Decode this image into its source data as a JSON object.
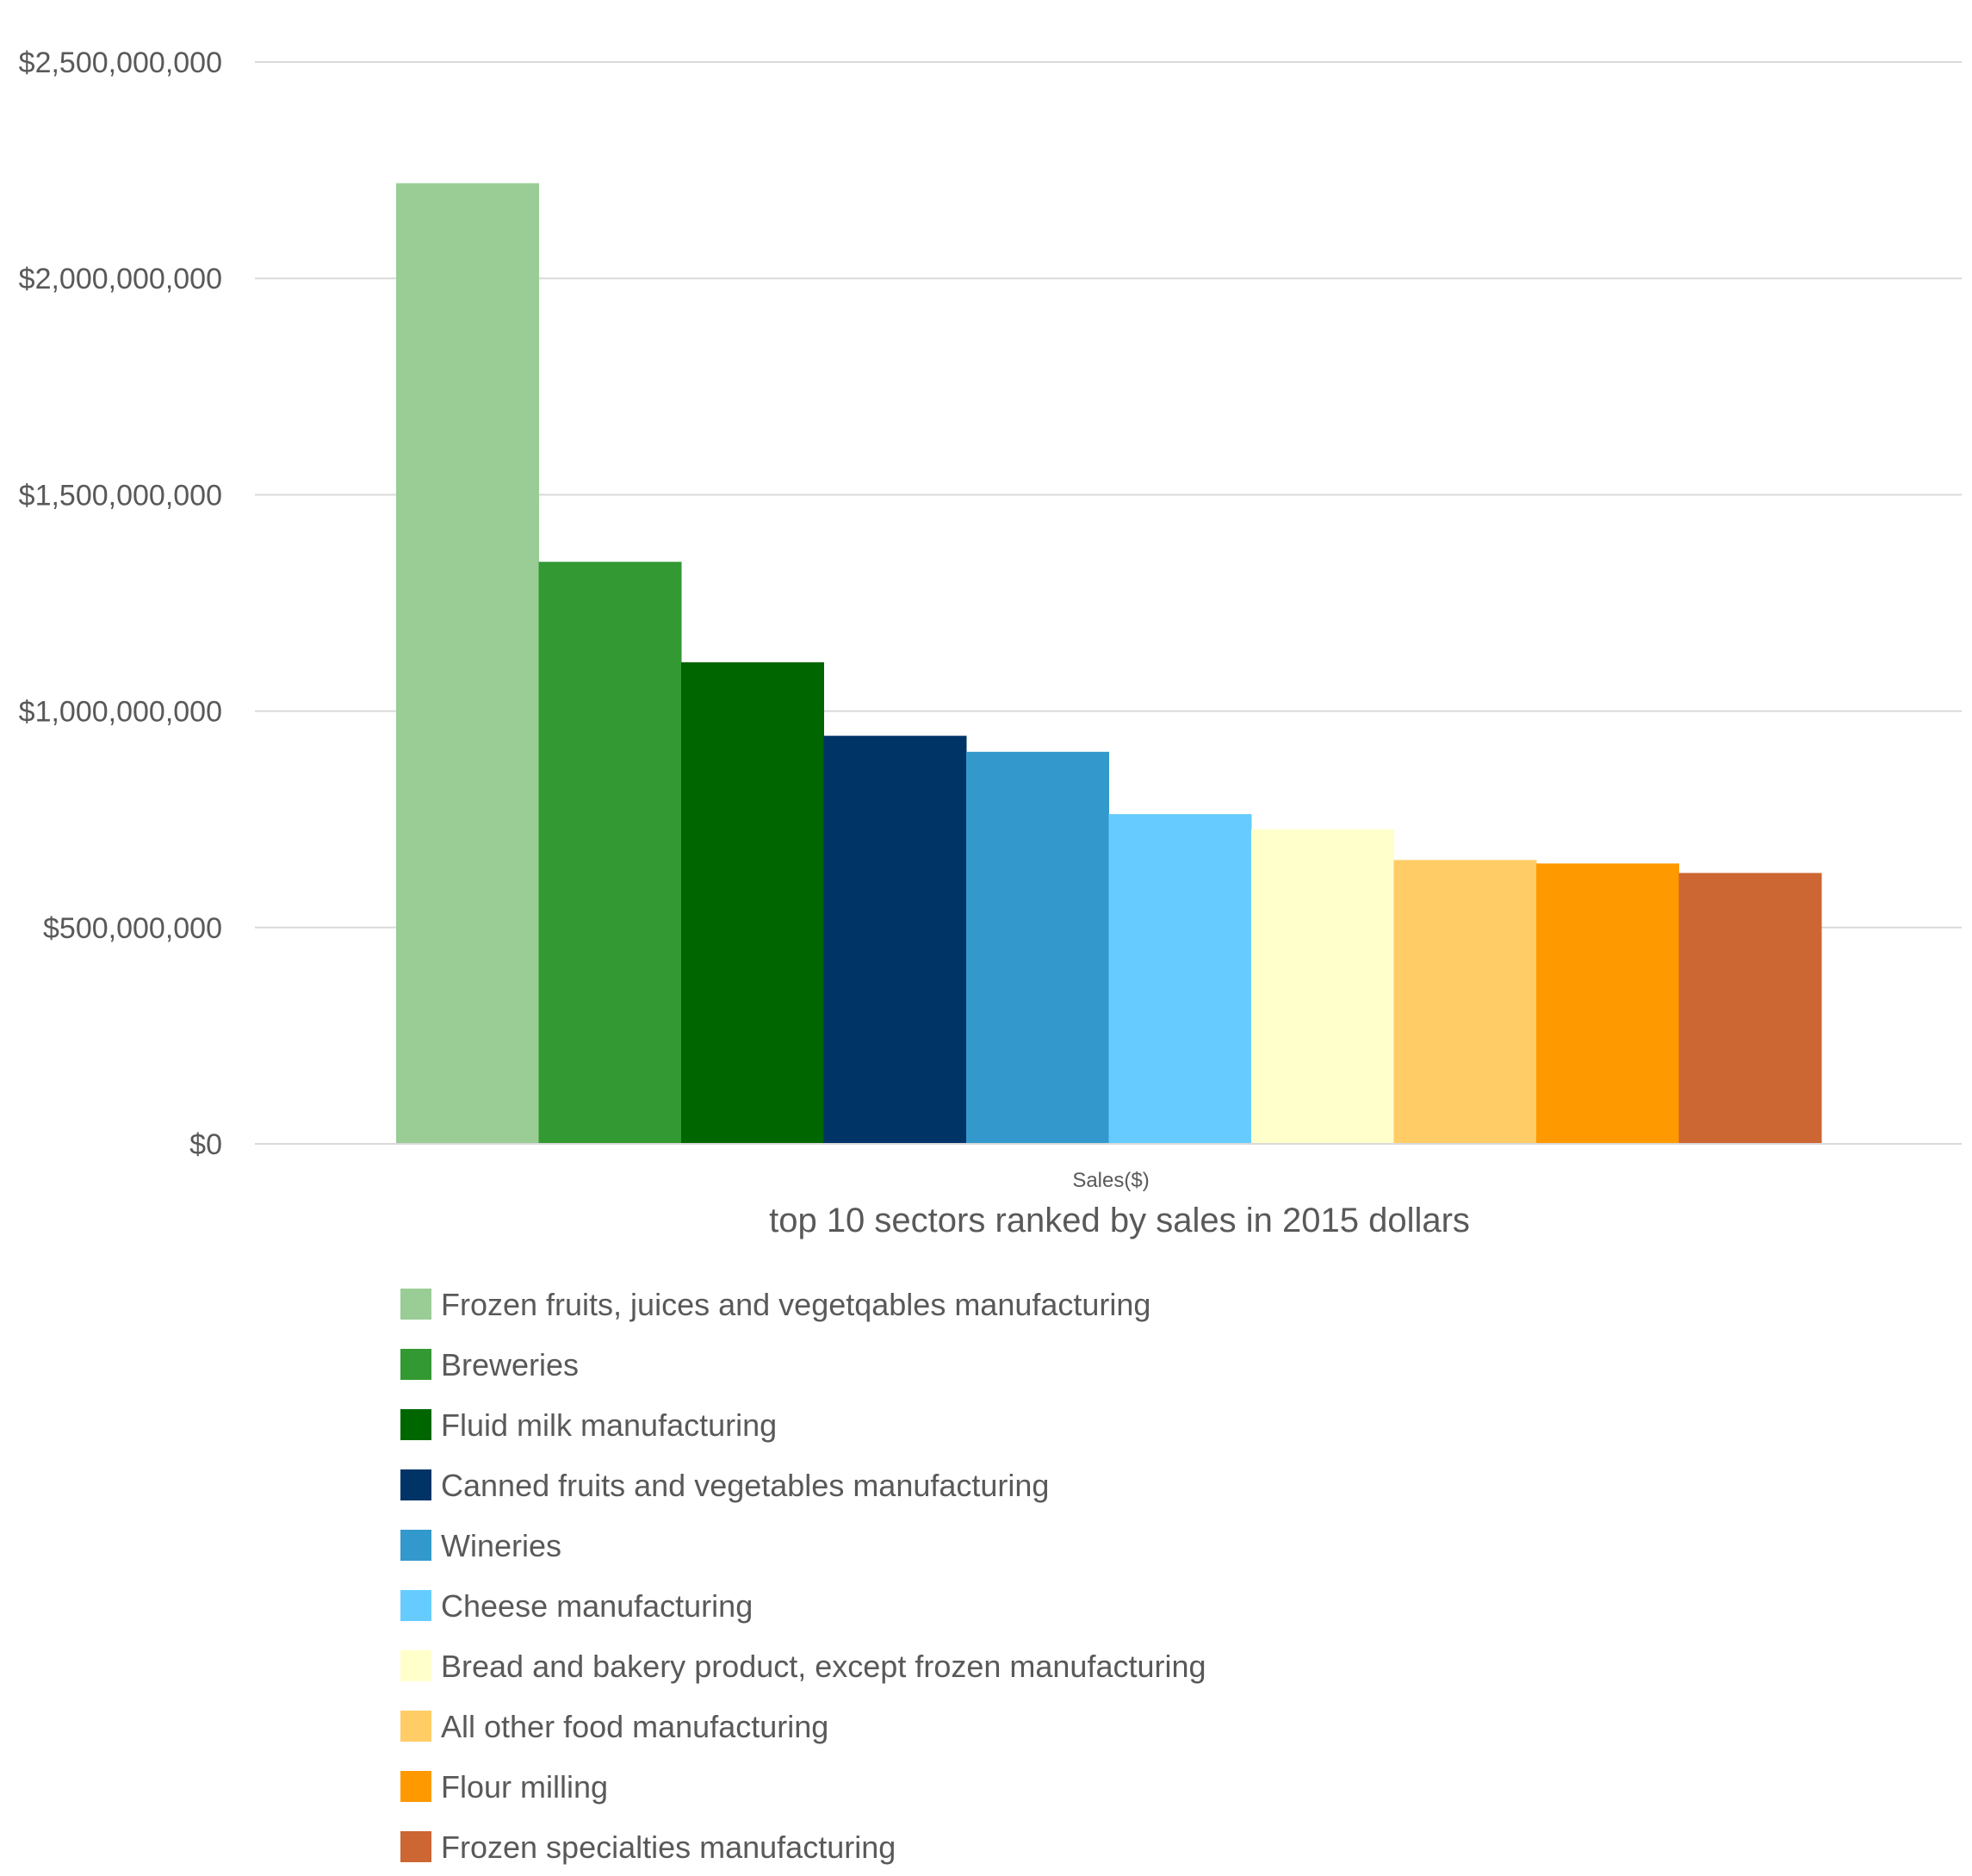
{
  "chart_data": {
    "type": "bar",
    "title": "top 10 sectors ranked by sales in 2015 dollars",
    "x_category": "Sales($)",
    "ylim": [
      0,
      2500000000
    ],
    "y_ticks": [
      0,
      500000000,
      1000000000,
      1500000000,
      2000000000,
      2500000000
    ],
    "y_tick_labels": [
      "$0",
      "$500,000,000",
      "$1,000,000,000",
      "$1,500,000,000",
      "$2,000,000,000",
      "$2,500,000,000"
    ],
    "grid": true,
    "legend_position": "bottom",
    "series": [
      {
        "name": "Frozen fruits, juices and vegetqables manufacturing",
        "value": 2220000000,
        "color": "#9ACD95"
      },
      {
        "name": "Breweries",
        "value": 1345000000,
        "color": "#339933"
      },
      {
        "name": "Fluid milk manufacturing",
        "value": 1113000000,
        "color": "#006600"
      },
      {
        "name": "Canned fruits and vegetables manufacturing",
        "value": 943000000,
        "color": "#003366"
      },
      {
        "name": "Wineries",
        "value": 906000000,
        "color": "#3399CC"
      },
      {
        "name": "Cheese manufacturing",
        "value": 762000000,
        "color": "#66CCFF"
      },
      {
        "name": "Bread and bakery product, except frozen manufacturing",
        "value": 727000000,
        "color": "#FFFFCC"
      },
      {
        "name": "All other food manufacturing",
        "value": 656000000,
        "color": "#FFCC66"
      },
      {
        "name": "Flour milling",
        "value": 648000000,
        "color": "#FF9900"
      },
      {
        "name": "Frozen specialties manufacturing",
        "value": 626000000,
        "color": "#CC6633"
      }
    ]
  },
  "colors": {
    "gridline": "#D9D9D9",
    "text": "#595959"
  }
}
